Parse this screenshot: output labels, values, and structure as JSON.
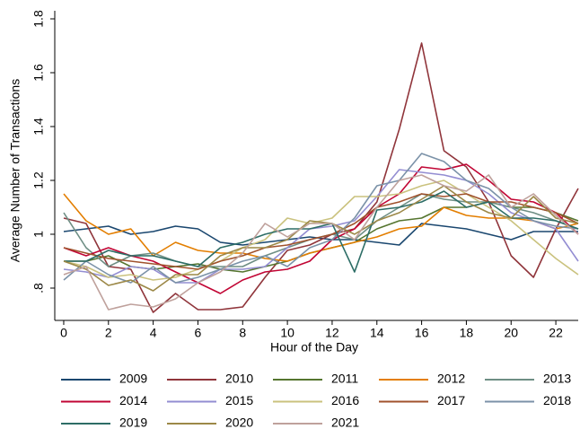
{
  "chart_data": {
    "type": "line",
    "x_label": "Hour of the Day",
    "y_label": "Average Number of Transactions",
    "x": [
      0,
      1,
      2,
      3,
      4,
      5,
      6,
      7,
      8,
      9,
      10,
      11,
      12,
      13,
      14,
      15,
      16,
      17,
      18,
      19,
      20,
      21,
      22,
      23
    ],
    "xlim": [
      -0.4,
      23
    ],
    "xticks": [
      0,
      2,
      4,
      6,
      8,
      10,
      12,
      14,
      16,
      18,
      20,
      22
    ],
    "ylim": [
      0.68,
      1.83
    ],
    "yticks": [
      {
        "value": 0.8,
        "label": ".8"
      },
      1,
      1.2,
      1.4,
      1.6,
      1.8
    ],
    "grid": false,
    "series": [
      {
        "name": "2009",
        "color": "#1a476f",
        "values": [
          1.01,
          1.02,
          1.03,
          1.0,
          1.01,
          1.03,
          1.02,
          0.97,
          0.96,
          0.97,
          0.98,
          0.99,
          0.98,
          0.98,
          0.97,
          0.96,
          1.04,
          1.03,
          1.02,
          1.0,
          0.98,
          1.01,
          1.01,
          1.01
        ]
      },
      {
        "name": "2010",
        "color": "#90353b",
        "values": [
          1.06,
          1.04,
          0.88,
          0.87,
          0.71,
          0.78,
          0.72,
          0.72,
          0.73,
          0.84,
          0.94,
          0.96,
          1.0,
          1.02,
          1.12,
          1.39,
          1.71,
          1.31,
          1.25,
          1.12,
          0.92,
          0.84,
          1.02,
          1.17
        ]
      },
      {
        "name": "2011",
        "color": "#55752f",
        "values": [
          0.9,
          0.9,
          0.92,
          0.88,
          0.87,
          0.88,
          0.89,
          0.87,
          0.86,
          0.88,
          0.9,
          0.93,
          0.95,
          0.97,
          1.02,
          1.05,
          1.06,
          1.1,
          1.1,
          1.12,
          1.1,
          1.1,
          1.08,
          1.05
        ]
      },
      {
        "name": "2012",
        "color": "#e37e00",
        "values": [
          1.15,
          1.05,
          1.0,
          1.02,
          0.92,
          0.97,
          0.94,
          0.93,
          0.93,
          0.91,
          0.9,
          0.93,
          0.95,
          0.97,
          0.99,
          1.02,
          1.03,
          1.1,
          1.07,
          1.06,
          1.06,
          1.05,
          1.02,
          1.04
        ]
      },
      {
        "name": "2013",
        "color": "#6e8e84",
        "values": [
          1.08,
          0.95,
          0.88,
          0.92,
          0.93,
          0.9,
          0.88,
          0.88,
          0.88,
          0.92,
          0.95,
          0.98,
          1.0,
          0.98,
          1.05,
          1.1,
          1.15,
          1.13,
          1.12,
          1.12,
          1.1,
          1.08,
          1.05,
          1.02
        ]
      },
      {
        "name": "2014",
        "color": "#c10534",
        "values": [
          0.95,
          0.92,
          0.95,
          0.92,
          0.9,
          0.86,
          0.82,
          0.78,
          0.83,
          0.86,
          0.87,
          0.9,
          0.98,
          1.02,
          1.1,
          1.15,
          1.25,
          1.24,
          1.26,
          1.2,
          1.13,
          1.12,
          1.08,
          1.0
        ]
      },
      {
        "name": "2015",
        "color": "#938dd2",
        "values": [
          0.87,
          0.86,
          0.84,
          0.88,
          0.87,
          0.82,
          0.82,
          0.87,
          0.87,
          0.88,
          0.95,
          1.02,
          1.03,
          1.05,
          1.14,
          1.24,
          1.23,
          1.22,
          1.2,
          1.15,
          1.08,
          1.05,
          1.02,
          0.9
        ]
      },
      {
        "name": "2016",
        "color": "#cac27e",
        "values": [
          0.9,
          0.88,
          0.84,
          0.85,
          0.83,
          0.84,
          0.87,
          0.9,
          0.95,
          0.98,
          1.06,
          1.04,
          1.06,
          1.14,
          1.14,
          1.15,
          1.18,
          1.2,
          1.15,
          1.1,
          1.05,
          0.98,
          0.91,
          0.85
        ]
      },
      {
        "name": "2017",
        "color": "#a0522d",
        "values": [
          0.95,
          0.93,
          0.91,
          0.9,
          0.89,
          0.88,
          0.87,
          0.9,
          0.92,
          0.95,
          0.96,
          0.98,
          1.0,
          1.04,
          1.1,
          1.12,
          1.15,
          1.14,
          1.15,
          1.12,
          1.12,
          1.1,
          1.08,
          1.04
        ]
      },
      {
        "name": "2018",
        "color": "#7b92a8",
        "values": [
          0.83,
          0.9,
          0.85,
          0.82,
          0.88,
          0.82,
          0.84,
          0.87,
          0.9,
          0.92,
          0.88,
          0.95,
          0.98,
          1.06,
          1.18,
          1.2,
          1.3,
          1.27,
          1.2,
          1.17,
          1.1,
          1.05,
          1.03,
          1.02
        ]
      },
      {
        "name": "2019",
        "color": "#2d6d66",
        "values": [
          0.9,
          0.9,
          0.94,
          0.92,
          0.92,
          0.9,
          0.88,
          0.95,
          0.97,
          1.0,
          1.02,
          1.02,
          1.04,
          0.86,
          1.09,
          1.1,
          1.12,
          1.16,
          1.1,
          1.12,
          1.06,
          1.06,
          1.05,
          1.02
        ]
      },
      {
        "name": "2020",
        "color": "#9c8847",
        "values": [
          0.9,
          0.87,
          0.81,
          0.83,
          0.79,
          0.85,
          0.85,
          0.92,
          0.95,
          0.95,
          0.98,
          1.05,
          1.04,
          1.0,
          1.05,
          1.08,
          1.13,
          1.18,
          1.12,
          1.08,
          1.06,
          1.14,
          1.06,
          1.04
        ]
      },
      {
        "name": "2021",
        "color": "#bfa19c",
        "values": [
          0.85,
          0.88,
          0.72,
          0.74,
          0.73,
          0.76,
          0.82,
          0.86,
          0.93,
          1.04,
          0.99,
          1.04,
          1.04,
          0.98,
          1.1,
          1.2,
          1.22,
          1.18,
          1.16,
          1.22,
          1.1,
          1.15,
          1.07,
          1.0
        ]
      }
    ]
  }
}
